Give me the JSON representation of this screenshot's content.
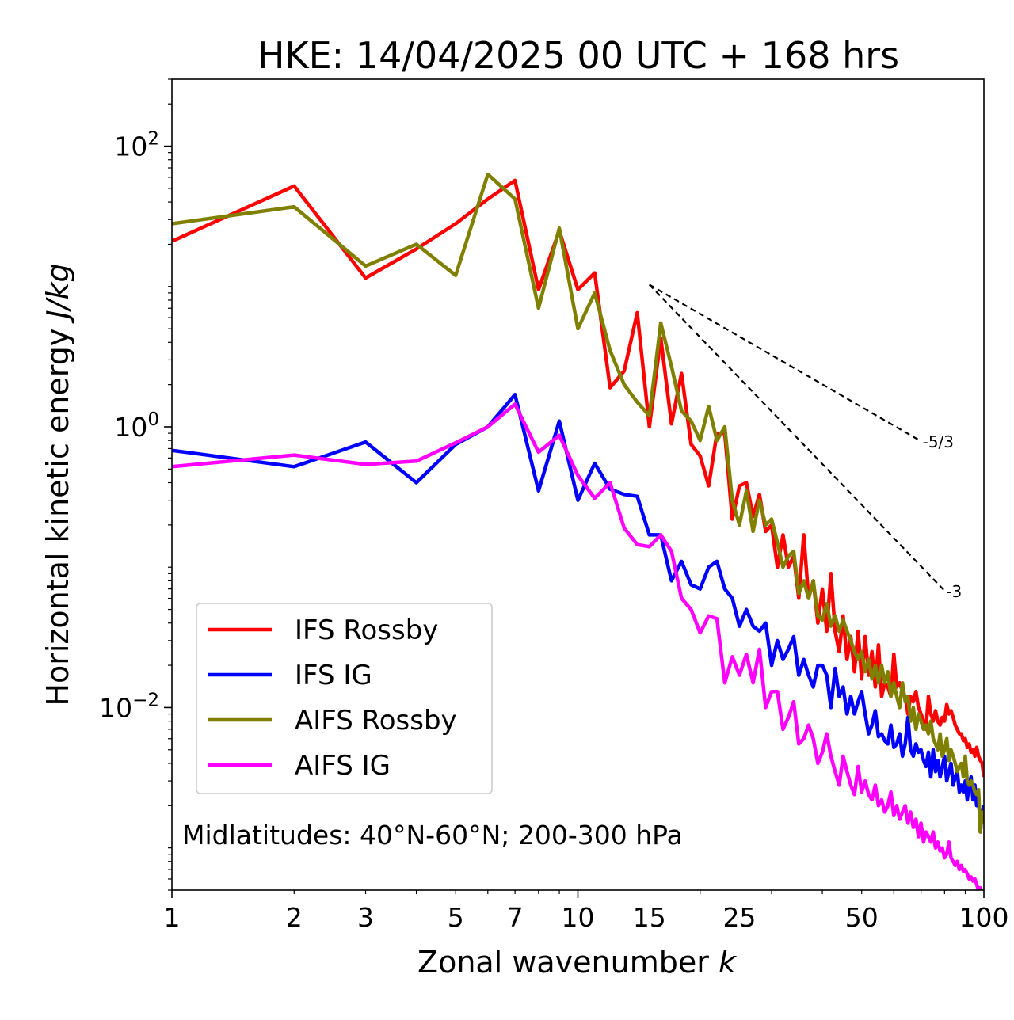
{
  "chart_data": {
    "type": "line",
    "title": "HKE: 14/04/2025 00 UTC + 168 hrs",
    "xlabel": "Zonal wavenumber k",
    "xlabel_main": "Zonal wavenumber ",
    "xlabel_italic": "k",
    "ylabel_main": "Horizontal kinetic energy ",
    "ylabel_italic": "J/kg",
    "xscale": "log",
    "yscale": "log",
    "xlim": [
      1,
      100
    ],
    "ylim": [
      0.0005,
      300
    ],
    "x_ticks": [
      1,
      2,
      3,
      5,
      7,
      10,
      15,
      25,
      50,
      100
    ],
    "x_tick_labels": [
      "1",
      "2",
      "3",
      "5",
      "7",
      "10",
      "15",
      "25",
      "50",
      "100"
    ],
    "y_ticks": [
      {
        "value": 100,
        "base": "10",
        "exp": "2"
      },
      {
        "value": 1,
        "base": "10",
        "exp": "0"
      },
      {
        "value": 0.01,
        "base": "10",
        "exp": "−2"
      }
    ],
    "grid": false,
    "legend_position": "lower-left",
    "annotation": "Midlatitudes: 40°N-60°N; 200-300 hPa",
    "reference_lines": [
      {
        "label": "-5/3",
        "slope": -1.6667,
        "x": [
          15,
          70
        ],
        "y": [
          10.3,
          0.79
        ]
      },
      {
        "label": "-3",
        "slope": -3,
        "x": [
          15,
          80
        ],
        "y": [
          10.3,
          0.068
        ]
      }
    ],
    "series": [
      {
        "name": "IFS Rossby",
        "color": "#ff0000",
        "x": [
          1,
          2,
          3,
          4,
          5,
          6,
          7,
          8,
          9,
          10,
          11,
          12,
          13,
          14,
          15,
          16,
          17,
          18,
          19,
          20,
          21,
          22,
          23,
          24,
          25,
          26,
          27,
          28,
          29,
          30,
          31,
          32,
          33,
          34,
          35,
          36,
          37,
          38,
          39,
          40,
          41,
          42,
          43,
          44,
          45,
          46,
          47,
          48,
          49,
          50,
          51,
          52,
          53,
          54,
          55,
          56,
          57,
          58,
          59,
          60,
          61,
          62,
          63,
          64,
          65,
          66,
          67,
          68,
          69,
          70,
          71,
          72,
          73,
          74,
          75,
          76,
          77,
          78,
          79,
          80,
          81,
          82,
          83,
          84,
          85,
          86,
          87,
          88,
          89,
          90,
          91,
          92,
          93,
          94,
          95,
          96,
          97,
          98,
          99,
          100
        ],
        "y": [
          21,
          52,
          11.5,
          18.5,
          28,
          42,
          57,
          9.5,
          25,
          9.5,
          12.5,
          1.9,
          2.5,
          6.5,
          1.0,
          4.3,
          1.05,
          2.4,
          0.75,
          0.62,
          0.38,
          0.9,
          0.9,
          0.22,
          0.38,
          0.4,
          0.23,
          0.33,
          0.18,
          0.2,
          0.1,
          0.17,
          0.1,
          0.12,
          0.06,
          0.17,
          0.06,
          0.08,
          0.04,
          0.07,
          0.035,
          0.09,
          0.035,
          0.025,
          0.045,
          0.022,
          0.032,
          0.018,
          0.035,
          0.016,
          0.032,
          0.017,
          0.025,
          0.014,
          0.028,
          0.012,
          0.015,
          0.014,
          0.012,
          0.024,
          0.014,
          0.015,
          0.013,
          0.012,
          0.009,
          0.012,
          0.011,
          0.013,
          0.01,
          0.009,
          0.008,
          0.007,
          0.012,
          0.009,
          0.008,
          0.0095,
          0.008,
          0.0075,
          0.0085,
          0.008,
          0.0105,
          0.009,
          0.0095,
          0.0085,
          0.0075,
          0.007,
          0.0065,
          0.0065,
          0.0058,
          0.006,
          0.0052,
          0.0055,
          0.0048,
          0.005,
          0.0045,
          0.0052,
          0.0045,
          0.0042,
          0.004,
          0.0032
        ]
      },
      {
        "name": "IFS IG",
        "color": "#0000ff",
        "x": [
          1,
          2,
          3,
          4,
          5,
          6,
          7,
          8,
          9,
          10,
          11,
          12,
          13,
          14,
          15,
          16,
          17,
          18,
          19,
          20,
          21,
          22,
          23,
          24,
          25,
          26,
          27,
          28,
          29,
          30,
          31,
          32,
          33,
          34,
          35,
          36,
          37,
          38,
          39,
          40,
          41,
          42,
          43,
          44,
          45,
          46,
          47,
          48,
          49,
          50,
          51,
          52,
          53,
          54,
          55,
          56,
          57,
          58,
          59,
          60,
          61,
          62,
          63,
          64,
          65,
          66,
          67,
          68,
          69,
          70,
          71,
          72,
          73,
          74,
          75,
          76,
          77,
          78,
          79,
          80,
          81,
          82,
          83,
          84,
          85,
          86,
          87,
          88,
          89,
          90,
          91,
          92,
          93,
          94,
          95,
          96,
          97,
          98,
          99,
          100
        ],
        "y": [
          0.68,
          0.52,
          0.78,
          0.4,
          0.75,
          1.0,
          1.7,
          0.35,
          1.1,
          0.3,
          0.55,
          0.36,
          0.33,
          0.32,
          0.17,
          0.17,
          0.08,
          0.11,
          0.075,
          0.07,
          0.1,
          0.11,
          0.07,
          0.06,
          0.038,
          0.05,
          0.038,
          0.035,
          0.04,
          0.02,
          0.03,
          0.022,
          0.026,
          0.032,
          0.017,
          0.022,
          0.017,
          0.014,
          0.02,
          0.02,
          0.017,
          0.01,
          0.019,
          0.012,
          0.014,
          0.009,
          0.012,
          0.009,
          0.011,
          0.013,
          0.009,
          0.0065,
          0.0075,
          0.0095,
          0.0062,
          0.0065,
          0.0058,
          0.0055,
          0.0075,
          0.0052,
          0.0055,
          0.0065,
          0.0045,
          0.0055,
          0.0085,
          0.005,
          0.0045,
          0.0055,
          0.0048,
          0.005,
          0.0042,
          0.0038,
          0.0048,
          0.0032,
          0.005,
          0.0035,
          0.0042,
          0.0032,
          0.0038,
          0.0045,
          0.003,
          0.0035,
          0.004,
          0.0028,
          0.0032,
          0.0035,
          0.0025,
          0.0028,
          0.0025,
          0.003,
          0.0022,
          0.0028,
          0.0032,
          0.0022,
          0.0028,
          0.002,
          0.0024,
          0.0013,
          0.0018,
          0.002
        ]
      },
      {
        "name": "AIFS Rossby",
        "color": "#808000",
        "x": [
          1,
          2,
          3,
          4,
          5,
          6,
          7,
          8,
          9,
          10,
          11,
          12,
          13,
          14,
          15,
          16,
          17,
          18,
          19,
          20,
          21,
          22,
          23,
          24,
          25,
          26,
          27,
          28,
          29,
          30,
          31,
          32,
          33,
          34,
          35,
          36,
          37,
          38,
          39,
          40,
          41,
          42,
          43,
          44,
          45,
          46,
          47,
          48,
          49,
          50,
          51,
          52,
          53,
          54,
          55,
          56,
          57,
          58,
          59,
          60,
          61,
          62,
          63,
          64,
          65,
          66,
          67,
          68,
          69,
          70,
          71,
          72,
          73,
          74,
          75,
          76,
          77,
          78,
          79,
          80,
          81,
          82,
          83,
          84,
          85,
          86,
          87,
          88,
          89,
          90,
          91,
          92,
          93,
          94,
          95,
          96,
          97,
          98,
          99,
          100
        ],
        "y": [
          28,
          37,
          14,
          20,
          12,
          63,
          42,
          7,
          26,
          5,
          9,
          3.5,
          2,
          1.5,
          1.2,
          5.5,
          2.7,
          1.3,
          1.1,
          0.8,
          1.4,
          0.8,
          1.0,
          0.3,
          0.2,
          0.35,
          0.18,
          0.3,
          0.2,
          0.22,
          0.15,
          0.1,
          0.12,
          0.13,
          0.065,
          0.08,
          0.06,
          0.08,
          0.045,
          0.042,
          0.055,
          0.038,
          0.045,
          0.035,
          0.042,
          0.035,
          0.03,
          0.025,
          0.022,
          0.025,
          0.018,
          0.022,
          0.016,
          0.02,
          0.015,
          0.02,
          0.015,
          0.018,
          0.012,
          0.015,
          0.012,
          0.01,
          0.015,
          0.011,
          0.012,
          0.008,
          0.01,
          0.007,
          0.009,
          0.008,
          0.007,
          0.0075,
          0.0065,
          0.008,
          0.006,
          0.0055,
          0.005,
          0.0065,
          0.0045,
          0.005,
          0.006,
          0.0042,
          0.005,
          0.0045,
          0.004,
          0.0035,
          0.0038,
          0.004,
          0.0032,
          0.0045,
          0.003,
          0.0028,
          0.003,
          0.0028,
          0.0025,
          0.0024,
          0.0026,
          0.0013,
          0.0018,
          0.0015
        ]
      },
      {
        "name": "AIFS IG",
        "color": "#ff00ff",
        "x": [
          1,
          2,
          3,
          4,
          5,
          6,
          7,
          8,
          9,
          10,
          11,
          12,
          13,
          14,
          15,
          16,
          17,
          18,
          19,
          20,
          21,
          22,
          23,
          24,
          25,
          26,
          27,
          28,
          29,
          30,
          31,
          32,
          33,
          34,
          35,
          36,
          37,
          38,
          39,
          40,
          41,
          42,
          43,
          44,
          45,
          46,
          47,
          48,
          49,
          50,
          51,
          52,
          53,
          54,
          55,
          56,
          57,
          58,
          59,
          60,
          61,
          62,
          63,
          64,
          65,
          66,
          67,
          68,
          69,
          70,
          71,
          72,
          73,
          74,
          75,
          76,
          77,
          78,
          79,
          80,
          81,
          82,
          83,
          84,
          85,
          86,
          87,
          88,
          89,
          90,
          91,
          92,
          93,
          94,
          95,
          96,
          97,
          98,
          99,
          100
        ],
        "y": [
          0.52,
          0.63,
          0.54,
          0.57,
          0.77,
          1.0,
          1.45,
          0.66,
          0.87,
          0.45,
          0.31,
          0.4,
          0.19,
          0.145,
          0.14,
          0.17,
          0.13,
          0.06,
          0.05,
          0.034,
          0.045,
          0.043,
          0.015,
          0.023,
          0.017,
          0.024,
          0.015,
          0.026,
          0.01,
          0.013,
          0.013,
          0.007,
          0.0085,
          0.011,
          0.0055,
          0.006,
          0.0075,
          0.006,
          0.004,
          0.0048,
          0.0065,
          0.0045,
          0.0035,
          0.0028,
          0.0045,
          0.0035,
          0.0028,
          0.0024,
          0.0038,
          0.0025,
          0.003,
          0.0024,
          0.0022,
          0.0028,
          0.002,
          0.0022,
          0.0018,
          0.002,
          0.0025,
          0.0017,
          0.002,
          0.0016,
          0.0018,
          0.002,
          0.0015,
          0.0018,
          0.0014,
          0.0016,
          0.0012,
          0.0015,
          0.0011,
          0.0013,
          0.0012,
          0.0011,
          0.0013,
          0.001,
          0.0011,
          0.00095,
          0.001,
          0.00085,
          0.0009,
          0.0011,
          0.00085,
          0.0008,
          0.00075,
          0.0008,
          0.0007,
          0.00075,
          0.00068,
          0.0007,
          0.00065,
          0.0006,
          0.00062,
          0.00058,
          0.0006,
          0.00055,
          0.0005,
          0.00052,
          0.00045,
          0.00042
        ]
      }
    ]
  }
}
